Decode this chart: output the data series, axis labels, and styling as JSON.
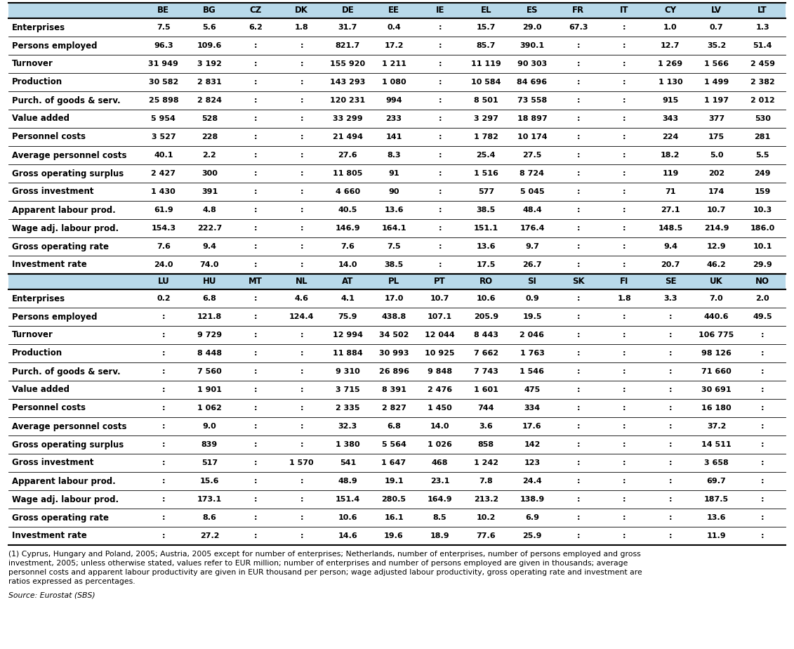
{
  "header_bg": "#b8d9ea",
  "cols1": [
    "",
    "BE",
    "BG",
    "CZ",
    "DK",
    "DE",
    "EE",
    "IE",
    "EL",
    "ES",
    "FR",
    "IT",
    "CY",
    "LV",
    "LT"
  ],
  "cols2": [
    "",
    "LU",
    "HU",
    "MT",
    "NL",
    "AT",
    "PL",
    "PT",
    "RO",
    "SI",
    "SK",
    "FI",
    "SE",
    "UK",
    "NO"
  ],
  "rows": [
    "Enterprises",
    "Persons employed",
    "Turnover",
    "Production",
    "Purch. of goods & serv.",
    "Value added",
    "Personnel costs",
    "Average personnel costs",
    "Gross operating surplus",
    "Gross investment",
    "Apparent labour prod.",
    "Wage adj. labour prod.",
    "Gross operating rate",
    "Investment rate"
  ],
  "data1": [
    [
      "7.5",
      "5.6",
      "6.2",
      "1.8",
      "31.7",
      "0.4",
      ":",
      "15.7",
      "29.0",
      "67.3",
      ":",
      "1.0",
      "0.7",
      "1.3"
    ],
    [
      "96.3",
      "109.6",
      ":",
      ":",
      "821.7",
      "17.2",
      ":",
      "85.7",
      "390.1",
      ":",
      ":",
      "12.7",
      "35.2",
      "51.4"
    ],
    [
      "31 949",
      "3 192",
      ":",
      ":",
      "155 920",
      "1 211",
      ":",
      "11 119",
      "90 303",
      ":",
      ":",
      "1 269",
      "1 566",
      "2 459"
    ],
    [
      "30 582",
      "2 831",
      ":",
      ":",
      "143 293",
      "1 080",
      ":",
      "10 584",
      "84 696",
      ":",
      ":",
      "1 130",
      "1 499",
      "2 382"
    ],
    [
      "25 898",
      "2 824",
      ":",
      ":",
      "120 231",
      "994",
      ":",
      "8 501",
      "73 558",
      ":",
      ":",
      "915",
      "1 197",
      "2 012"
    ],
    [
      "5 954",
      "528",
      ":",
      ":",
      "33 299",
      "233",
      ":",
      "3 297",
      "18 897",
      ":",
      ":",
      "343",
      "377",
      "530"
    ],
    [
      "3 527",
      "228",
      ":",
      ":",
      "21 494",
      "141",
      ":",
      "1 782",
      "10 174",
      ":",
      ":",
      "224",
      "175",
      "281"
    ],
    [
      "40.1",
      "2.2",
      ":",
      ":",
      "27.6",
      "8.3",
      ":",
      "25.4",
      "27.5",
      ":",
      ":",
      "18.2",
      "5.0",
      "5.5"
    ],
    [
      "2 427",
      "300",
      ":",
      ":",
      "11 805",
      "91",
      ":",
      "1 516",
      "8 724",
      ":",
      ":",
      "119",
      "202",
      "249"
    ],
    [
      "1 430",
      "391",
      ":",
      ":",
      "4 660",
      "90",
      ":",
      "577",
      "5 045",
      ":",
      ":",
      "71",
      "174",
      "159"
    ],
    [
      "61.9",
      "4.8",
      ":",
      ":",
      "40.5",
      "13.6",
      ":",
      "38.5",
      "48.4",
      ":",
      ":",
      "27.1",
      "10.7",
      "10.3"
    ],
    [
      "154.3",
      "222.7",
      ":",
      ":",
      "146.9",
      "164.1",
      ":",
      "151.1",
      "176.4",
      ":",
      ":",
      "148.5",
      "214.9",
      "186.0"
    ],
    [
      "7.6",
      "9.4",
      ":",
      ":",
      "7.6",
      "7.5",
      ":",
      "13.6",
      "9.7",
      ":",
      ":",
      "9.4",
      "12.9",
      "10.1"
    ],
    [
      "24.0",
      "74.0",
      ":",
      ":",
      "14.0",
      "38.5",
      ":",
      "17.5",
      "26.7",
      ":",
      ":",
      "20.7",
      "46.2",
      "29.9"
    ]
  ],
  "data2": [
    [
      "0.2",
      "6.8",
      ":",
      "4.6",
      "4.1",
      "17.0",
      "10.7",
      "10.6",
      "0.9",
      ":",
      "1.8",
      "3.3",
      "7.0",
      "2.0"
    ],
    [
      ":",
      "121.8",
      ":",
      "124.4",
      "75.9",
      "438.8",
      "107.1",
      "205.9",
      "19.5",
      ":",
      ":",
      ":",
      "440.6",
      "49.5"
    ],
    [
      ":",
      "9 729",
      ":",
      ":",
      "12 994",
      "34 502",
      "12 044",
      "8 443",
      "2 046",
      ":",
      ":",
      ":",
      "106 775",
      ":"
    ],
    [
      ":",
      "8 448",
      ":",
      ":",
      "11 884",
      "30 993",
      "10 925",
      "7 662",
      "1 763",
      ":",
      ":",
      ":",
      "98 126",
      ":"
    ],
    [
      ":",
      "7 560",
      ":",
      ":",
      "9 310",
      "26 896",
      "9 848",
      "7 743",
      "1 546",
      ":",
      ":",
      ":",
      "71 660",
      ":"
    ],
    [
      ":",
      "1 901",
      ":",
      ":",
      "3 715",
      "8 391",
      "2 476",
      "1 601",
      "475",
      ":",
      ":",
      ":",
      "30 691",
      ":"
    ],
    [
      ":",
      "1 062",
      ":",
      ":",
      "2 335",
      "2 827",
      "1 450",
      "744",
      "334",
      ":",
      ":",
      ":",
      "16 180",
      ":"
    ],
    [
      ":",
      "9.0",
      ":",
      ":",
      "32.3",
      "6.8",
      "14.0",
      "3.6",
      "17.6",
      ":",
      ":",
      ":",
      "37.2",
      ":"
    ],
    [
      ":",
      "839",
      ":",
      ":",
      "1 380",
      "5 564",
      "1 026",
      "858",
      "142",
      ":",
      ":",
      ":",
      "14 511",
      ":"
    ],
    [
      ":",
      "517",
      ":",
      "1 570",
      "541",
      "1 647",
      "468",
      "1 242",
      "123",
      ":",
      ":",
      ":",
      "3 658",
      ":"
    ],
    [
      ":",
      "15.6",
      ":",
      ":",
      "48.9",
      "19.1",
      "23.1",
      "7.8",
      "24.4",
      ":",
      ":",
      ":",
      "69.7",
      ":"
    ],
    [
      ":",
      "173.1",
      ":",
      ":",
      "151.4",
      "280.5",
      "164.9",
      "213.2",
      "138.9",
      ":",
      ":",
      ":",
      "187.5",
      ":"
    ],
    [
      ":",
      "8.6",
      ":",
      ":",
      "10.6",
      "16.1",
      "8.5",
      "10.2",
      "6.9",
      ":",
      ":",
      ":",
      "13.6",
      ":"
    ],
    [
      ":",
      "27.2",
      ":",
      ":",
      "14.6",
      "19.6",
      "18.9",
      "77.6",
      "25.9",
      ":",
      ":",
      ":",
      "11.9",
      ":"
    ]
  ],
  "footnote_lines": [
    "(1) Cyprus, Hungary and Poland, 2005; Austria, 2005 except for number of enterprises; Netherlands, number of enterprises, number of persons employed and gross",
    "investment, 2005; unless otherwise stated, values refer to EUR million; number of enterprises and number of persons employed are given in thousands; average",
    "personnel costs and apparent labour productivity are given in EUR thousand per person; wage adjusted labour productivity, gross operating rate and investment are",
    "ratios expressed as percentages."
  ],
  "source": "Source: Eurostat (SBS)",
  "header_fontsize": 8.5,
  "data_fontsize": 8.0,
  "label_fontsize": 8.5,
  "footnote_fontsize": 7.8
}
